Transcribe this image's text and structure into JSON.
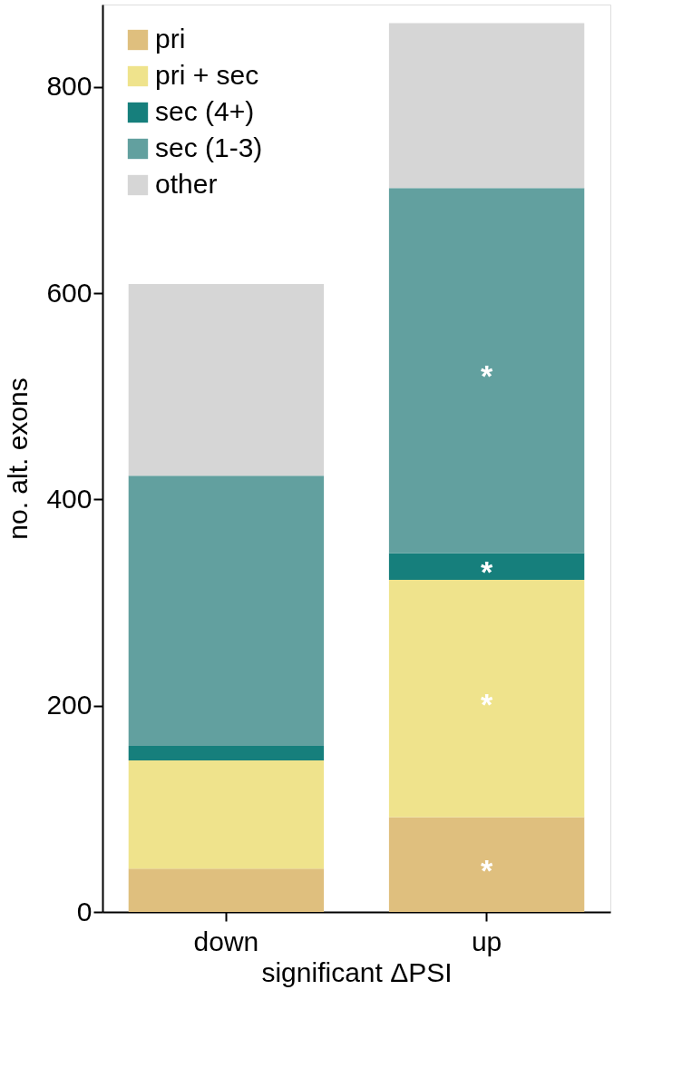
{
  "chart_data": {
    "type": "bar",
    "stacked": true,
    "xlabel": "significant ΔPSI",
    "ylabel": "no. alt. exons",
    "categories": [
      "down",
      "up"
    ],
    "series": [
      {
        "name": "pri",
        "color": "#dfbf7e",
        "values": [
          42,
          92
        ]
      },
      {
        "name": "pri + sec",
        "color": "#efe38c",
        "values": [
          105,
          230
        ]
      },
      {
        "name": "sec (4+)",
        "color": "#167f7c",
        "values": [
          14,
          26
        ]
      },
      {
        "name": "sec (1-3)",
        "color": "#62a09f",
        "values": [
          262,
          354
        ]
      },
      {
        "name": "other",
        "color": "#d6d6d6",
        "values": [
          186,
          160
        ]
      }
    ],
    "ylim": [
      0,
      880
    ],
    "yticks": [
      0,
      200,
      400,
      600,
      800
    ],
    "grid": false,
    "legend": "top left",
    "annotations": [
      "*",
      "*",
      "*",
      "*"
    ]
  }
}
